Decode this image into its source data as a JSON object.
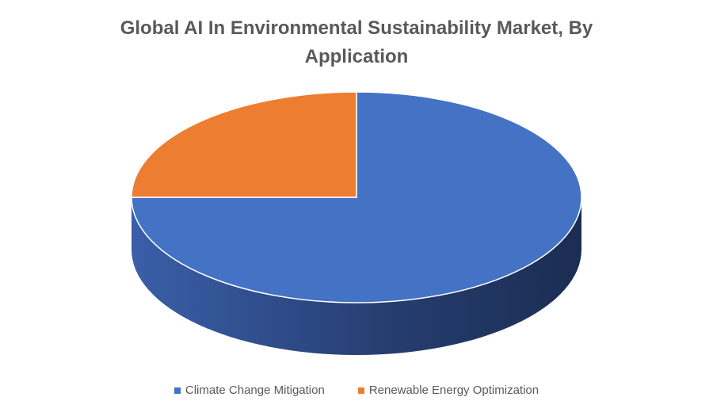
{
  "chart_data": {
    "type": "pie",
    "title": "Global AI In Environmental Sustainability Market, By Application",
    "title_lines": [
      "Global AI In Environmental Sustainability Market, By",
      "Application"
    ],
    "slices": [
      {
        "label": "Climate Change Mitigation",
        "value": 75,
        "color": "#4472C4"
      },
      {
        "label": "Renewable Energy Optimization",
        "value": 25,
        "color": "#ED7D31"
      }
    ],
    "legend_position": "bottom",
    "style": "3d"
  }
}
